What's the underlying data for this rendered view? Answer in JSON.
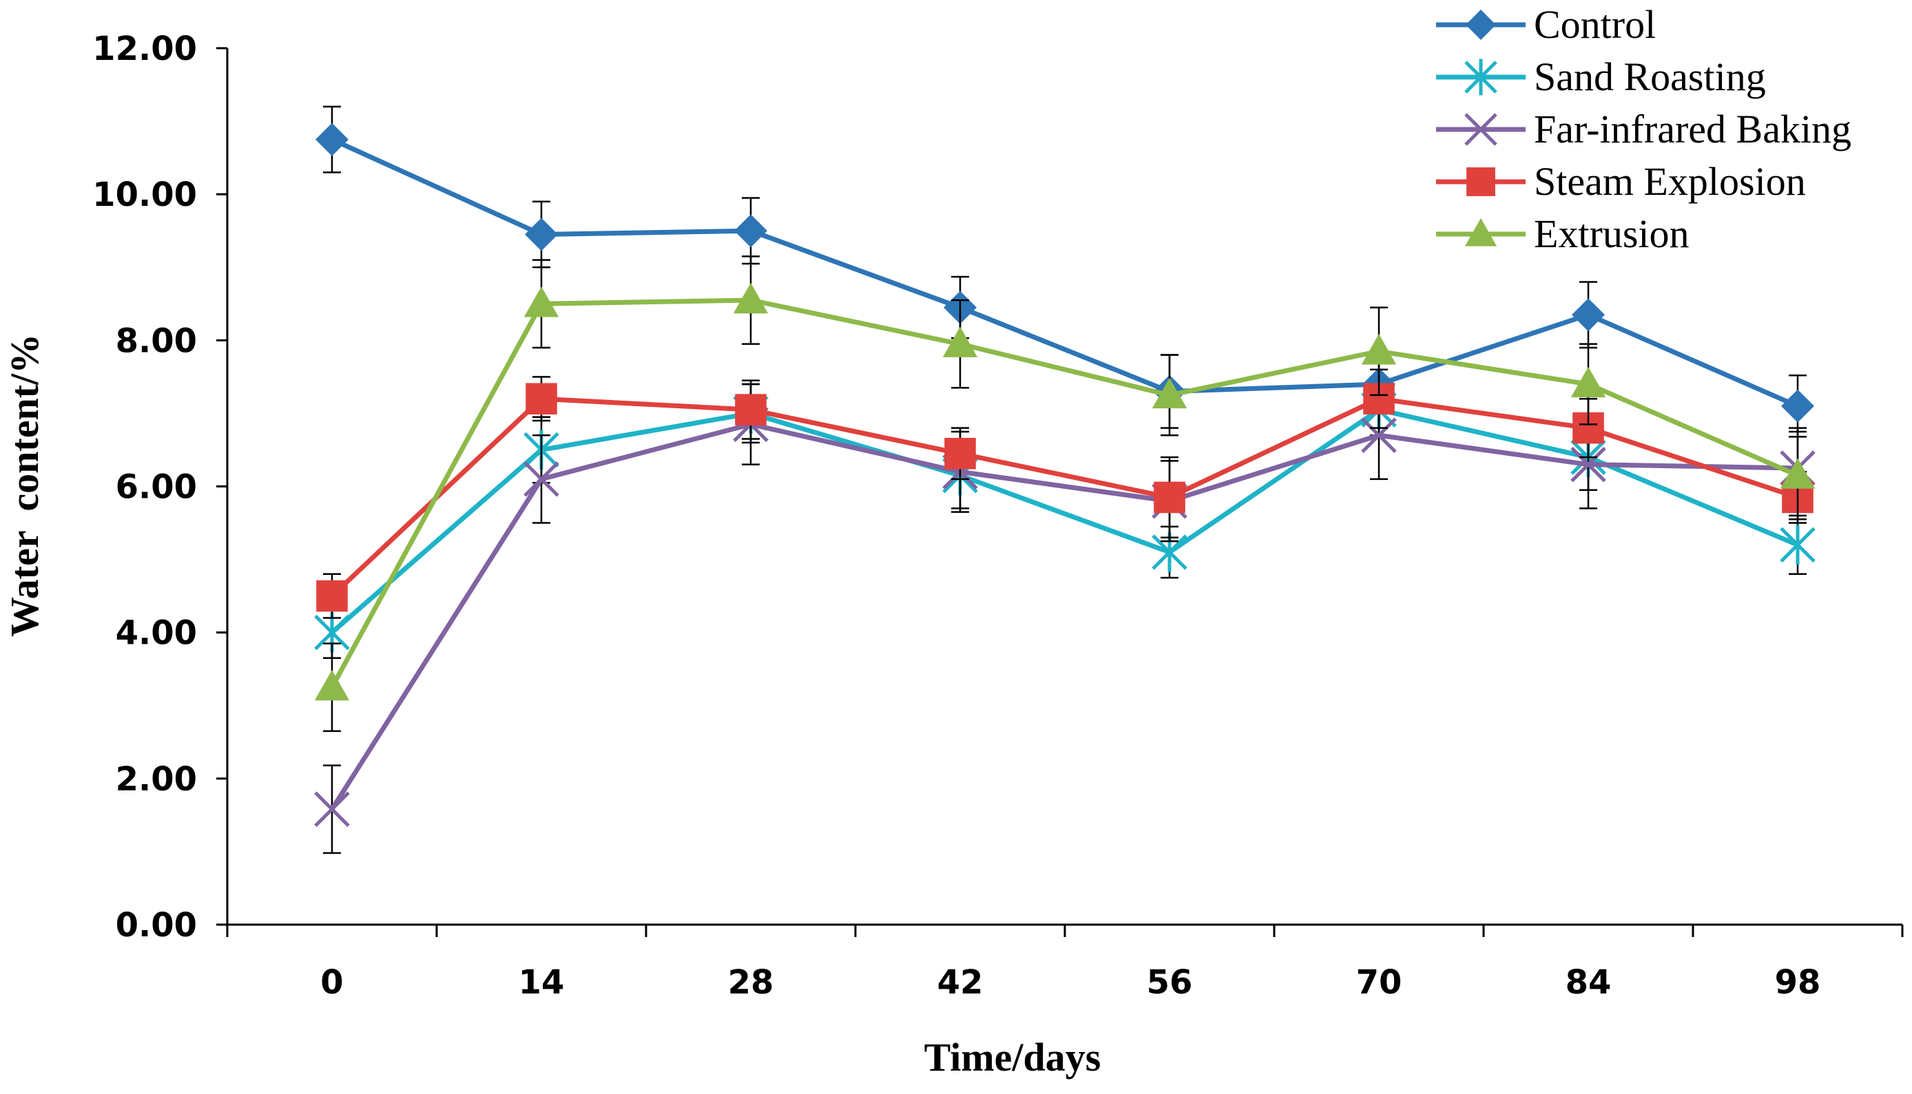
{
  "chart_data": {
    "type": "line",
    "xlabel": "Time/days",
    "ylabel": "Water  content/%",
    "x": [
      0,
      14,
      28,
      42,
      56,
      70,
      84,
      98
    ],
    "x_tick_labels": [
      "0",
      "14",
      "28",
      "42",
      "56",
      "70",
      "84",
      "98"
    ],
    "ylim": [
      0,
      12
    ],
    "y_ticks": [
      0,
      2,
      4,
      6,
      8,
      10,
      12
    ],
    "y_tick_labels": [
      "0.00",
      "2.00",
      "4.00",
      "6.00",
      "8.00",
      "10.00",
      "12.00"
    ],
    "legend_position": "top-right",
    "series": [
      {
        "name": "Control",
        "color": "#2E75B6",
        "marker": "diamond",
        "values": [
          10.75,
          9.45,
          9.5,
          8.45,
          7.3,
          7.4,
          8.35,
          7.1
        ],
        "errors": [
          0.45,
          0.45,
          0.45,
          0.42,
          0.5,
          0.3,
          0.45,
          0.42
        ]
      },
      {
        "name": "Sand Roasting",
        "color": "#1FB3C8",
        "marker": "asterisk",
        "values": [
          4.0,
          6.5,
          7.0,
          6.15,
          5.1,
          7.05,
          6.4,
          5.2
        ],
        "errors": [
          0.35,
          0.45,
          0.4,
          0.45,
          0.35,
          0.35,
          0.45,
          0.4
        ]
      },
      {
        "name": "Far-infrared Baking",
        "color": "#8064A2",
        "marker": "x",
        "values": [
          1.58,
          6.1,
          6.85,
          6.2,
          5.8,
          6.7,
          6.3,
          6.25
        ],
        "errors": [
          0.6,
          0.6,
          0.55,
          0.55,
          0.55,
          0.6,
          0.6,
          0.55
        ]
      },
      {
        "name": "Steam Explosion",
        "color": "#E0413D",
        "marker": "square",
        "values": [
          4.5,
          7.2,
          7.05,
          6.45,
          5.85,
          7.2,
          6.8,
          5.85
        ],
        "errors": [
          0.3,
          0.3,
          0.4,
          0.35,
          0.55,
          0.4,
          0.4,
          0.35
        ]
      },
      {
        "name": "Extrusion",
        "color": "#8DB94A",
        "marker": "triangle",
        "values": [
          3.25,
          8.5,
          8.55,
          7.95,
          7.25,
          7.85,
          7.4,
          6.15
        ],
        "errors": [
          0.6,
          0.6,
          0.6,
          0.6,
          0.55,
          0.6,
          0.55,
          0.6
        ]
      }
    ]
  }
}
